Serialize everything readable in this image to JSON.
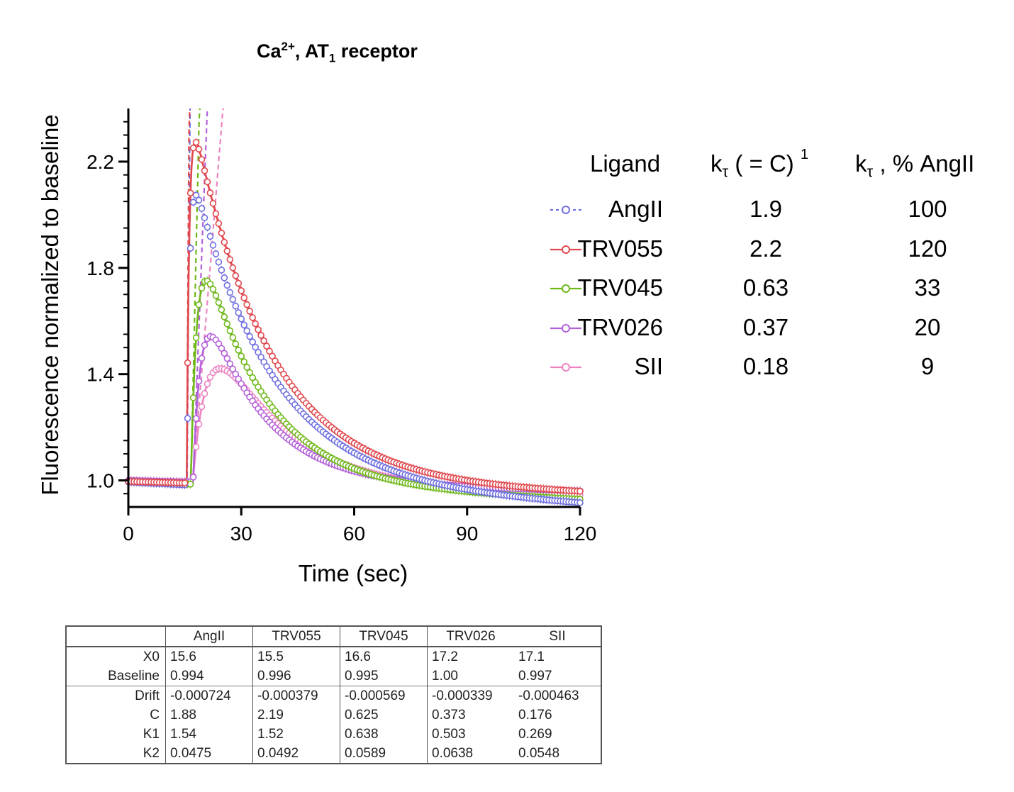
{
  "chart_data": {
    "type": "scatter",
    "title": {
      "main": "Ca",
      "sup": "2+",
      "mid": ", AT",
      "sub": "1",
      "tail": " receptor"
    },
    "xlabel": "Time (sec)",
    "ylabel": "Fluorescence normalized to baseline",
    "xlim": [
      0,
      120
    ],
    "ylim": [
      0.9,
      2.4
    ],
    "xticks": [
      0,
      30,
      60,
      90,
      120
    ],
    "xtick_labels": [
      "0",
      "30",
      "60",
      "90",
      "120"
    ],
    "yticks": [
      1.0,
      1.4,
      1.8,
      2.2
    ],
    "ytick_labels": [
      "1.0",
      "1.4",
      "1.8",
      "2.2"
    ],
    "series": [
      {
        "name": "AngII",
        "color": "#6f6fe0",
        "marker": "open-circle",
        "line": "dashed",
        "x0": 15.6,
        "baseline": 0.994,
        "drift": -0.000724,
        "C": 1.88,
        "K1": 1.54,
        "K2": 0.0475
      },
      {
        "name": "TRV055",
        "color": "#e0484e",
        "marker": "open-circle",
        "line": "solid",
        "x0": 15.5,
        "baseline": 0.996,
        "drift": -0.000379,
        "C": 2.19,
        "K1": 1.52,
        "K2": 0.0492
      },
      {
        "name": "TRV045",
        "color": "#6fb81a",
        "marker": "open-circle",
        "line": "solid",
        "x0": 16.6,
        "baseline": 0.995,
        "drift": -0.000569,
        "C": 0.625,
        "K1": 0.638,
        "K2": 0.0589
      },
      {
        "name": "TRV026",
        "color": "#b361d9",
        "marker": "open-circle",
        "line": "solid",
        "x0": 17.2,
        "baseline": 1.0,
        "drift": -0.000339,
        "C": 0.373,
        "K1": 0.503,
        "K2": 0.0638
      },
      {
        "name": "SII",
        "color": "#ec84c2",
        "marker": "open-circle",
        "line": "solid",
        "x0": 17.1,
        "baseline": 0.997,
        "drift": -0.000463,
        "C": 0.176,
        "K1": 0.269,
        "K2": 0.0548
      }
    ]
  },
  "legend": {
    "headers": {
      "ligand": "Ligand",
      "k_main": "k",
      "k_sub": "τ",
      "k_rest": " ( = C) ",
      "k_sup": "1",
      "pct_main": "k",
      "pct_sub": "τ",
      "pct_rest": " , % AngII"
    },
    "rows": [
      {
        "name": "AngII",
        "k": "1.9",
        "pct": "100"
      },
      {
        "name": "TRV055",
        "k": "2.2",
        "pct": "120"
      },
      {
        "name": "TRV045",
        "k": "0.63",
        "pct": "33"
      },
      {
        "name": "TRV026",
        "k": "0.37",
        "pct": "20"
      },
      {
        "name": "SII",
        "k": "0.18",
        "pct": "9"
      }
    ]
  },
  "param_table": {
    "columns": [
      "",
      "AngII",
      "TRV055",
      "TRV045",
      "TRV026",
      "SII"
    ],
    "rows": [
      {
        "label": "X0",
        "values": [
          "15.6",
          "15.5",
          "16.6",
          "17.2",
          "17.1"
        ]
      },
      {
        "label": "Baseline",
        "values": [
          "0.994",
          "0.996",
          "0.995",
          "1.00",
          "0.997"
        ]
      },
      {
        "label": "Drift",
        "values": [
          "-0.000724",
          "-0.000379",
          "-0.000569",
          "-0.000339",
          "-0.000463"
        ]
      },
      {
        "label": "C",
        "values": [
          "1.88",
          "2.19",
          "0.625",
          "0.373",
          "0.176"
        ]
      },
      {
        "label": "K1",
        "values": [
          "1.54",
          "1.52",
          "0.638",
          "0.503",
          "0.269"
        ]
      },
      {
        "label": "K2",
        "values": [
          "0.0475",
          "0.0492",
          "0.0589",
          "0.0638",
          "0.0548"
        ]
      }
    ]
  }
}
